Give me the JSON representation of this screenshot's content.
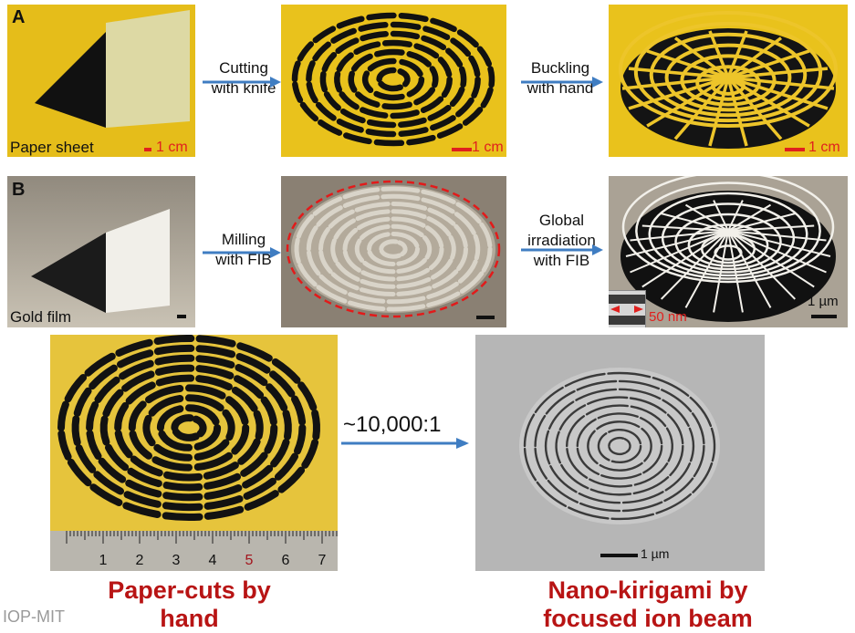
{
  "row_a": {
    "letter": "A",
    "panel1_label": "Paper sheet",
    "panel1_scale": "1 cm",
    "step1": [
      "Cutting",
      "with knife"
    ],
    "panel2_scale": "1 cm",
    "step2": [
      "Buckling",
      "with hand"
    ],
    "panel3_scale": "1 cm"
  },
  "row_b": {
    "letter": "B",
    "panel1_label": "Gold film",
    "step1": [
      "Milling",
      "with FIB"
    ],
    "step2": [
      "Global",
      "irradiation",
      "with FIB"
    ],
    "inset_scale": "50 nm",
    "panel3_scale": "1 µm"
  },
  "bottom": {
    "ratio": "~10,000:1",
    "ruler_numbers": [
      "1",
      "2",
      "3",
      "4",
      "5",
      "6",
      "7"
    ],
    "sem_scale": "1 µm",
    "caption_left": [
      "Paper-cuts by",
      "hand"
    ],
    "caption_right": [
      "Nano-kirigami by",
      "focused ion beam"
    ]
  },
  "watermark": "IOP-MIT",
  "colors": {
    "paper_yellow": "#e9c21c",
    "arrow_blue": "#3f7dc2",
    "scale_red": "#e0201e",
    "caption_red": "#b81414",
    "dashed_red": "#e21a1a"
  }
}
